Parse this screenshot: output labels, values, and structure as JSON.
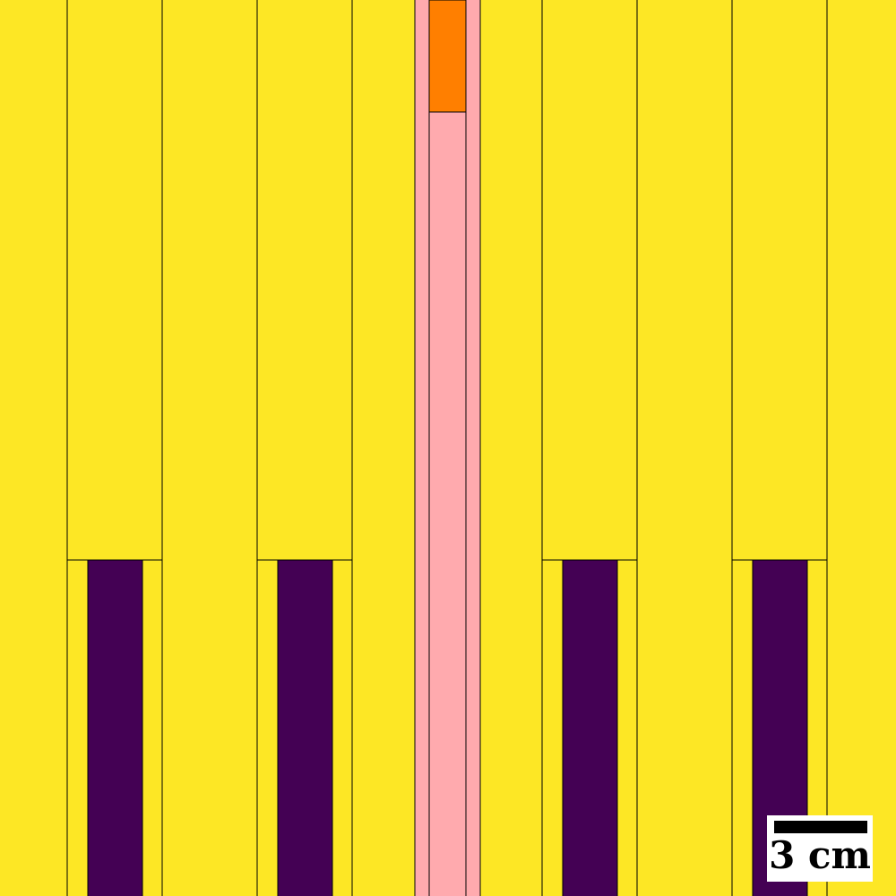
{
  "colors": {
    "moderator": "#fde725",
    "fuel": "#440154",
    "guide_tube": "#ffaaae",
    "control_rod": "#ff7f00",
    "outline": "#000000",
    "scale_bar_background": "#ffffff",
    "scale_bar": "#000000"
  },
  "regions": [
    {
      "name": "moderator-region",
      "material": "moderator",
      "icon": "moderator-fill"
    },
    {
      "name": "fuel-rod",
      "material": "fuel",
      "icon": "fuel-pin"
    },
    {
      "name": "guide-tube",
      "material": "guide_tube",
      "icon": "guide-tube"
    },
    {
      "name": "control-rod",
      "material": "control_rod",
      "icon": "control-rod"
    }
  ],
  "scale_bar": {
    "label": "3 cm"
  }
}
